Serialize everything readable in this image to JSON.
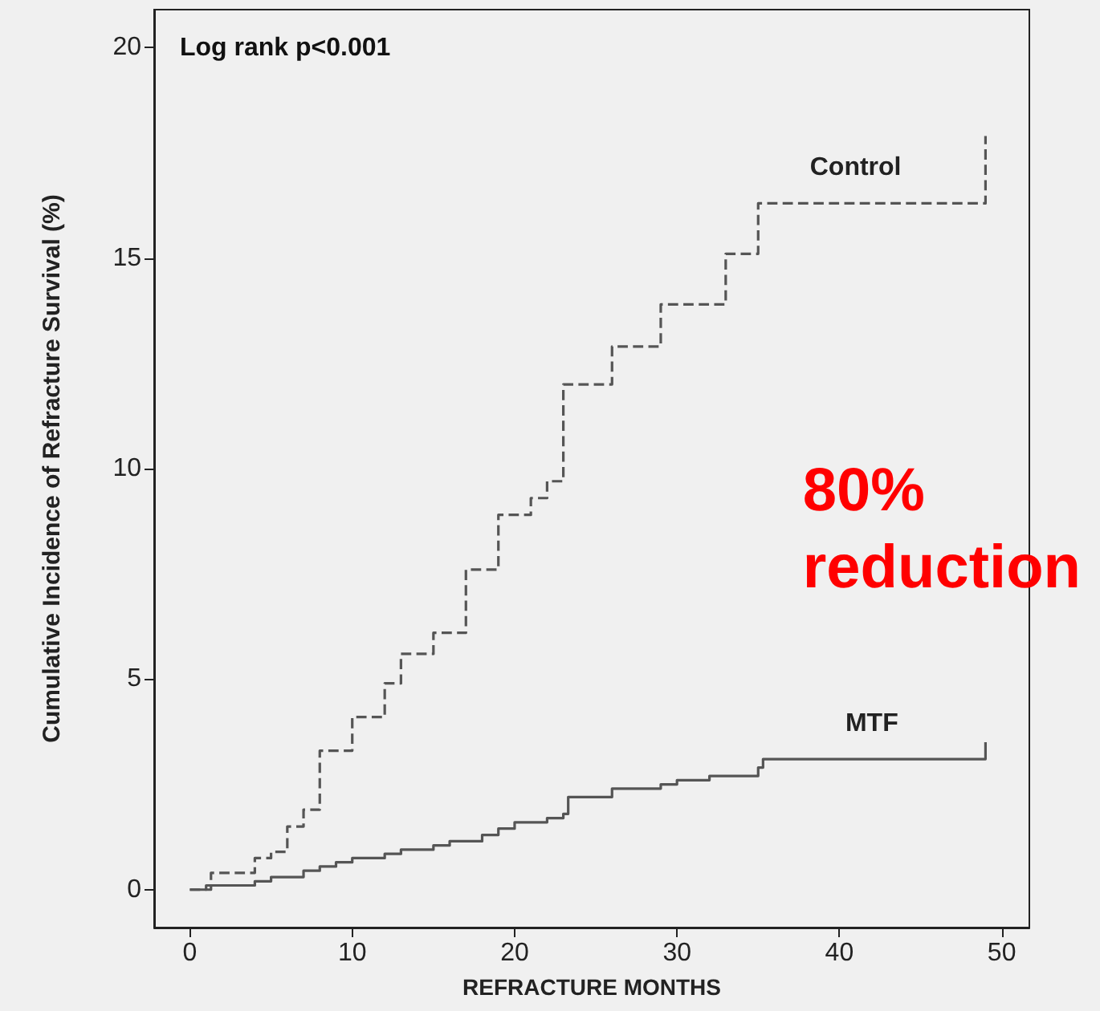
{
  "chart_data": {
    "type": "step",
    "xlabel": "REFRACTURE MONTHS",
    "ylabel": "Cumulative Incidence of Refracture Survival (%)",
    "annotations": [
      "Log rank p<0.001",
      "80%\nreduction"
    ],
    "series": [
      {
        "name": "Control",
        "color": "#555555",
        "line_style": "dashed",
        "x": [
          0,
          1.3,
          4,
          5,
          6,
          7,
          8,
          10,
          12,
          13,
          15,
          17,
          19,
          21,
          22,
          23,
          26,
          29,
          33,
          35,
          49,
          49
        ],
        "values": [
          0,
          0.4,
          0.75,
          0.9,
          1.5,
          1.9,
          3.3,
          4.1,
          4.9,
          5.6,
          6.1,
          7.6,
          8.9,
          9.3,
          9.7,
          12.0,
          12.9,
          13.9,
          15.1,
          16.3,
          16.3,
          17.9
        ]
      },
      {
        "name": "MTF",
        "color": "#555555",
        "line_style": "solid",
        "x": [
          0,
          1,
          4,
          5,
          7,
          8,
          9,
          10,
          12,
          13,
          15,
          16,
          18,
          19,
          20,
          22,
          23,
          23.3,
          26,
          29,
          30,
          32,
          35,
          35.3,
          49,
          49
        ],
        "values": [
          0,
          0.1,
          0.2,
          0.3,
          0.45,
          0.55,
          0.65,
          0.75,
          0.85,
          0.95,
          1.05,
          1.15,
          1.3,
          1.45,
          1.6,
          1.7,
          1.8,
          2.2,
          2.4,
          2.5,
          2.6,
          2.7,
          2.9,
          3.1,
          3.1,
          3.5
        ]
      }
    ],
    "xlim": [
      -2.2,
      51.7
    ],
    "xticks": [
      0,
      10,
      20,
      30,
      40,
      50
    ],
    "ylim": [
      -0.9,
      20.9
    ],
    "yticks": [
      0,
      5,
      10,
      15,
      20
    ],
    "grid": false,
    "legend": false,
    "marker": "none"
  }
}
